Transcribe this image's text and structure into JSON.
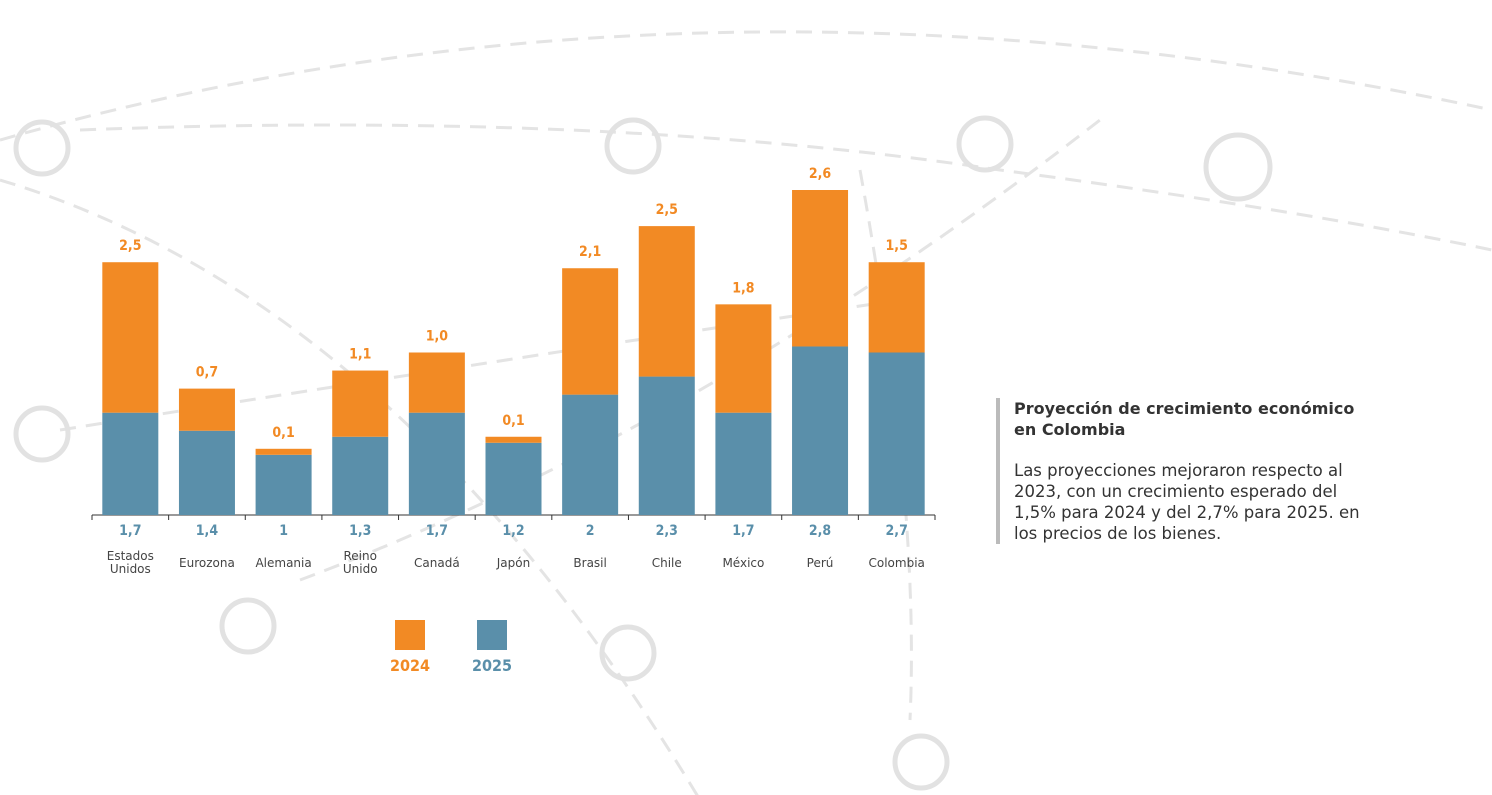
{
  "chart_data": {
    "type": "stacked-bar",
    "categories": [
      "Estados Unidos",
      "Eurozona",
      "Alemania",
      "Reino Unido",
      "Canadá",
      "Japón",
      "Brasil",
      "Chile",
      "México",
      "Perú",
      "Colombia"
    ],
    "series": [
      {
        "name": "2024",
        "color": "#f28a24",
        "values": [
          2.5,
          0.7,
          0.1,
          1.1,
          1.0,
          0.1,
          2.1,
          2.5,
          1.8,
          2.6,
          1.5
        ],
        "value_labels": [
          "2,5",
          "0,7",
          "0,1",
          "1,1",
          "1,0",
          "0,1",
          "2,1",
          "2,5",
          "1,8",
          "2,6",
          "1,5"
        ]
      },
      {
        "name": "2025",
        "color": "#5a8faa",
        "values": [
          1.7,
          1.4,
          1,
          1.3,
          1.7,
          1.2,
          2,
          2.3,
          1.7,
          2.8,
          2.7
        ],
        "value_labels": [
          "1,7",
          "1,4",
          "1",
          "1,3",
          "1,7",
          "1,2",
          "2",
          "2,3",
          "1,7",
          "2,8",
          "2,7"
        ]
      }
    ]
  },
  "panel": {
    "title": "Proyección de crecimiento económico en Colombia",
    "body": "Las proyecciones mejoraron respecto al 2023, con un crecimiento esperado del 1,5% para 2024 y del 2,7% para 2025. en los precios de los bienes."
  }
}
